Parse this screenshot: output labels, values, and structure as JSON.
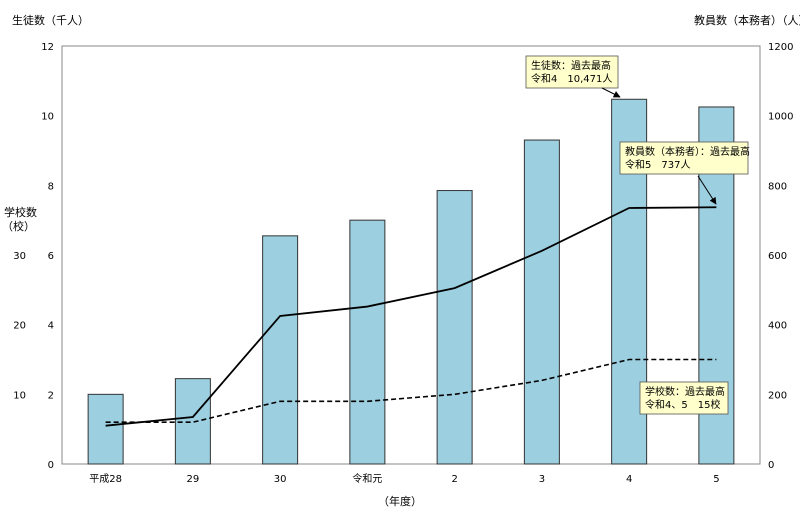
{
  "chart_data": {
    "type": "bar+line",
    "categories": [
      "平成28",
      "29",
      "30",
      "令和元",
      "2",
      "3",
      "4",
      "5"
    ],
    "xlabel": "（年度）",
    "left_axis_label": "生徒数（千人）",
    "left_axis_ticks": [
      "0",
      "2",
      "4",
      "6",
      "8",
      "10",
      "12"
    ],
    "left_lower_axis_label_line1": "学校数",
    "left_lower_axis_label_line2": "（校）",
    "left_lower_axis_ticks": [
      "10",
      "20",
      "30"
    ],
    "right_axis_label": "教員数（本務者）（人）",
    "right_axis_ticks": [
      "0",
      "200",
      "400",
      "600",
      "800",
      "1000",
      "1200"
    ],
    "series": [
      {
        "name": "生徒数",
        "kind": "bar",
        "unit": "千人",
        "color": "#9ccfe0",
        "values": [
          2.0,
          2.45,
          6.55,
          7.0,
          7.85,
          9.3,
          10.471,
          10.25
        ]
      },
      {
        "name": "教員数（本務者）",
        "kind": "line",
        "unit": "人",
        "color": "#000000",
        "values": [
          110,
          135,
          425,
          452,
          505,
          612,
          735,
          737
        ]
      },
      {
        "name": "学校数",
        "kind": "dashed-line",
        "unit": "校",
        "color": "#000000",
        "values": [
          6,
          6,
          9,
          9,
          10,
          12,
          15,
          15
        ]
      }
    ],
    "annotations": [
      {
        "target": "students",
        "line1": "生徒数：過去最高",
        "line2": "令和4　10,471人"
      },
      {
        "target": "teachers",
        "line1": "教員数（本務者）：過去最高",
        "line2": "令和5　737人"
      },
      {
        "target": "schools",
        "line1": "学校数：過去最高",
        "line2": "令和4、5　15校"
      }
    ]
  }
}
